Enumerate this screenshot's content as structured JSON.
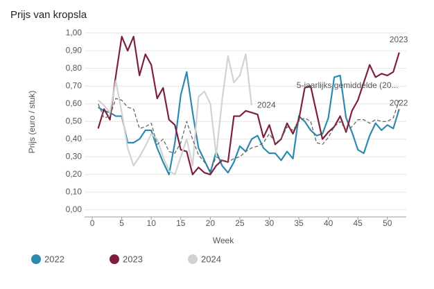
{
  "chart_data": {
    "type": "line",
    "title": "Prijs van kropsla",
    "x_label": "Week",
    "y_label": "Prijs (euro / stuk)",
    "x": [
      1,
      2,
      3,
      4,
      5,
      6,
      7,
      8,
      9,
      10,
      11,
      12,
      13,
      14,
      15,
      16,
      17,
      18,
      19,
      20,
      21,
      22,
      23,
      24,
      25,
      26,
      27,
      28,
      29,
      30,
      31,
      32,
      33,
      34,
      35,
      36,
      37,
      38,
      39,
      40,
      41,
      42,
      43,
      44,
      45,
      46,
      47,
      48,
      49,
      50,
      51,
      52
    ],
    "xlim": [
      -1.3,
      53.2
    ],
    "xticks": [
      0,
      5,
      10,
      15,
      20,
      25,
      30,
      35,
      40,
      45,
      50
    ],
    "ylim": [
      -0.04,
      1.03
    ],
    "yticks": [
      {
        "value": 0,
        "label": "0,00"
      },
      {
        "value": 0.1,
        "label": "0,10"
      },
      {
        "value": 0.2,
        "label": "0,20"
      },
      {
        "value": 0.3,
        "label": "0,30"
      },
      {
        "value": 0.4,
        "label": "0,40"
      },
      {
        "value": 0.5,
        "label": "0,50"
      },
      {
        "value": 0.6,
        "label": "0,60"
      },
      {
        "value": 0.7,
        "label": "0,70"
      },
      {
        "value": 0.8,
        "label": "0,80"
      },
      {
        "value": 0.9,
        "label": "0,90"
      },
      {
        "value": 1,
        "label": "1,00"
      }
    ],
    "grid": true,
    "series": [
      {
        "name": "2022",
        "color": "#2b8aad",
        "legend": true,
        "end_label": "2022",
        "values": [
          0.58,
          0.56,
          0.55,
          0.53,
          0.53,
          0.38,
          0.38,
          0.4,
          0.45,
          0.45,
          0.35,
          0.27,
          0.2,
          0.38,
          0.65,
          0.78,
          0.55,
          0.35,
          0.28,
          0.21,
          0.33,
          0.25,
          0.21,
          0.27,
          0.36,
          0.33,
          0.4,
          0.42,
          0.35,
          0.32,
          0.32,
          0.28,
          0.33,
          0.29,
          0.53,
          0.5,
          0.45,
          0.42,
          0.43,
          0.52,
          0.75,
          0.76,
          0.52,
          0.44,
          0.34,
          0.32,
          0.42,
          0.49,
          0.45,
          0.48,
          0.46,
          0.57
        ]
      },
      {
        "name": "2023",
        "color": "#7d1f3c",
        "legend": true,
        "end_label": "2023",
        "values": [
          0.46,
          0.57,
          0.51,
          0.76,
          0.98,
          0.9,
          0.98,
          0.76,
          0.88,
          0.82,
          0.63,
          0.69,
          0.51,
          0.48,
          0.34,
          0.33,
          0.2,
          0.24,
          0.21,
          0.2,
          0.25,
          0.28,
          0.27,
          0.53,
          0.53,
          0.56,
          0.55,
          0.54,
          0.41,
          0.48,
          0.37,
          0.4,
          0.49,
          0.43,
          0.51,
          0.69,
          0.7,
          0.55,
          0.4,
          0.44,
          0.47,
          0.53,
          0.44,
          0.56,
          0.62,
          0.72,
          0.82,
          0.75,
          0.77,
          0.76,
          0.78,
          0.89
        ]
      },
      {
        "name": "2024",
        "color": "#d2d2d2",
        "legend": true,
        "end_label": "2024",
        "values": [
          0.62,
          0.59,
          0.55,
          0.73,
          0.55,
          0.35,
          0.25,
          0.3,
          0.36,
          0.43,
          0.4,
          0.3,
          0.22,
          0.2,
          0.3,
          0.4,
          0.25,
          0.64,
          0.67,
          0.6,
          0.31,
          0.62,
          0.87,
          0.72,
          0.76,
          0.88,
          0.59,
          null,
          null,
          null,
          null,
          null,
          null,
          null,
          null,
          null,
          null,
          null,
          null,
          null,
          null,
          null,
          null,
          null,
          null,
          null,
          null,
          null,
          null,
          null,
          null,
          null
        ]
      },
      {
        "name": "5-jaarlijks gemiddelde (20...",
        "color": "#666666",
        "legend": false,
        "dashed": true,
        "values": [
          0.6,
          0.52,
          0.53,
          0.63,
          0.62,
          0.58,
          0.57,
          0.46,
          0.47,
          0.49,
          0.37,
          0.4,
          0.33,
          0.32,
          0.38,
          0.5,
          0.4,
          0.31,
          0.27,
          0.22,
          0.3,
          0.28,
          0.27,
          0.29,
          0.3,
          0.33,
          0.35,
          0.36,
          0.38,
          0.43,
          0.38,
          0.4,
          0.47,
          0.45,
          0.5,
          0.52,
          0.5,
          0.38,
          0.37,
          0.41,
          0.47,
          0.5,
          0.45,
          0.47,
          0.51,
          0.51,
          0.49,
          0.51,
          0.5,
          0.5,
          0.52,
          0.62
        ]
      }
    ]
  }
}
